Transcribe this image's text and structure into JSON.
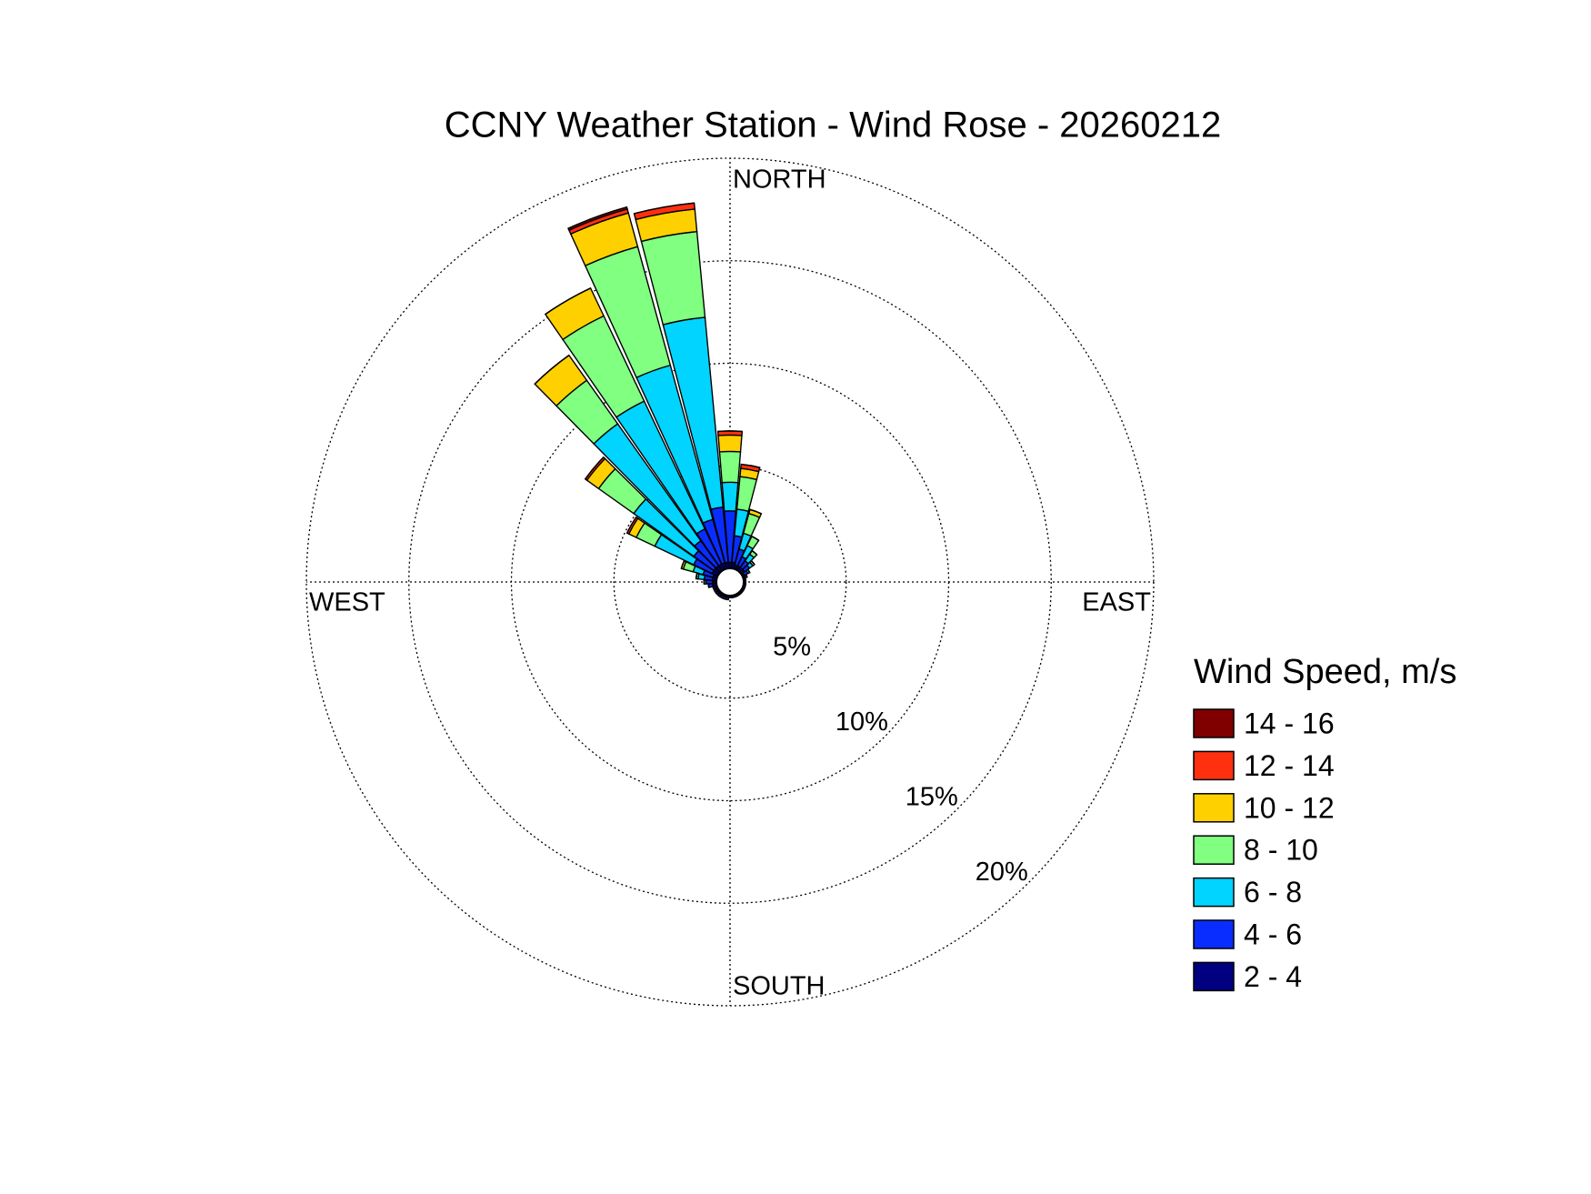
{
  "chart_data": {
    "type": "windrose",
    "title": "CCNY Weather Station - Wind Rose - 20260212",
    "legend_title": "Wind Speed, m/s",
    "legend": "right",
    "x": [
      0,
      10,
      20,
      30,
      40,
      50,
      60,
      70,
      80,
      90,
      100,
      110,
      120,
      130,
      140,
      150,
      160,
      170,
      180,
      190,
      200,
      210,
      220,
      230,
      240,
      250,
      260,
      270,
      280,
      290,
      300,
      310,
      320,
      330,
      340,
      350
    ],
    "direction_labels": [
      {
        "value": 0,
        "label": "NORTH"
      },
      {
        "value": 90,
        "label": "EAST"
      },
      {
        "value": 180,
        "label": "SOUTH"
      },
      {
        "value": 270,
        "label": "WEST"
      }
    ],
    "rlim": [
      0,
      20
    ],
    "rticks": [
      {
        "value": 5,
        "label": "5%"
      },
      {
        "value": 10,
        "label": "10%"
      },
      {
        "value": 15,
        "label": "15%"
      },
      {
        "value": 20,
        "label": "20%"
      }
    ],
    "grid": true,
    "series": [
      {
        "name": "2 - 4",
        "color": "#000080",
        "values": [
          0.3,
          0.3,
          0.2,
          0.2,
          0.2,
          0.2,
          0.1,
          0.1,
          0.1,
          0.1,
          0.1,
          0.1,
          0.1,
          0.1,
          0.1,
          0.1,
          0.1,
          0.1,
          0.1,
          0.1,
          0.1,
          0.1,
          0.1,
          0.1,
          0.1,
          0.1,
          0.2,
          0.2,
          0.2,
          0.2,
          0.3,
          0.3,
          0.3,
          0.3,
          0.3,
          0.3
        ]
      },
      {
        "name": "4 - 6",
        "color": "#0a2dff",
        "values": [
          2.5,
          1.3,
          0.8,
          0.5,
          0.4,
          0.3,
          0.2,
          0.1,
          0,
          0,
          0,
          0,
          0,
          0,
          0,
          0,
          0,
          0,
          0,
          0.1,
          0.1,
          0.1,
          0.1,
          0.1,
          0.1,
          0.1,
          0.2,
          0.3,
          0.4,
          0.5,
          1.0,
          1.2,
          1.5,
          1.9,
          2.2,
          2.7
        ]
      },
      {
        "name": "6 - 8",
        "color": "#00d4ff",
        "values": [
          1.4,
          1.3,
          0.8,
          0.6,
          0.4,
          0.2,
          0.1,
          0,
          0,
          0,
          0,
          0,
          0,
          0,
          0,
          0,
          0,
          0,
          0,
          0,
          0,
          0,
          0,
          0,
          0,
          0,
          0,
          0.1,
          0.3,
          0.5,
          2.1,
          3.6,
          7.0,
          6.9,
          7.8,
          9.3
        ]
      },
      {
        "name": "8 - 10",
        "color": "#80ff80",
        "values": [
          1.5,
          1.6,
          1.0,
          0.5,
          0.2,
          0.1,
          0,
          0,
          0,
          0,
          0,
          0,
          0,
          0,
          0,
          0,
          0,
          0,
          0,
          0,
          0,
          0,
          0,
          0,
          0,
          0,
          0,
          0,
          0.1,
          0.5,
          1.0,
          2.1,
          2.6,
          4.6,
          6.0,
          4.2
        ]
      },
      {
        "name": "10 - 12",
        "color": "#ffd000",
        "values": [
          0.8,
          0.4,
          0.2,
          0,
          0,
          0,
          0,
          0,
          0,
          0,
          0,
          0,
          0,
          0,
          0,
          0,
          0,
          0,
          0,
          0,
          0,
          0,
          0,
          0,
          0,
          0,
          0,
          0,
          0,
          0.1,
          0.4,
          0.7,
          1.5,
          1.5,
          1.7,
          1.1
        ]
      },
      {
        "name": "12 - 14",
        "color": "#ff3010",
        "values": [
          0.2,
          0.2,
          0,
          0,
          0,
          0,
          0,
          0,
          0,
          0,
          0,
          0,
          0,
          0,
          0,
          0,
          0,
          0,
          0,
          0,
          0,
          0,
          0,
          0,
          0,
          0,
          0,
          0,
          0,
          0,
          0.1,
          0.1,
          0,
          0,
          0.2,
          0.3
        ]
      },
      {
        "name": "14 - 16",
        "color": "#800000",
        "values": [
          0,
          0,
          0,
          0,
          0,
          0,
          0,
          0,
          0,
          0,
          0,
          0,
          0,
          0,
          0,
          0,
          0,
          0,
          0,
          0,
          0,
          0,
          0,
          0,
          0,
          0,
          0,
          0,
          0,
          0,
          0,
          0,
          0,
          0,
          0.1,
          0
        ]
      }
    ]
  }
}
